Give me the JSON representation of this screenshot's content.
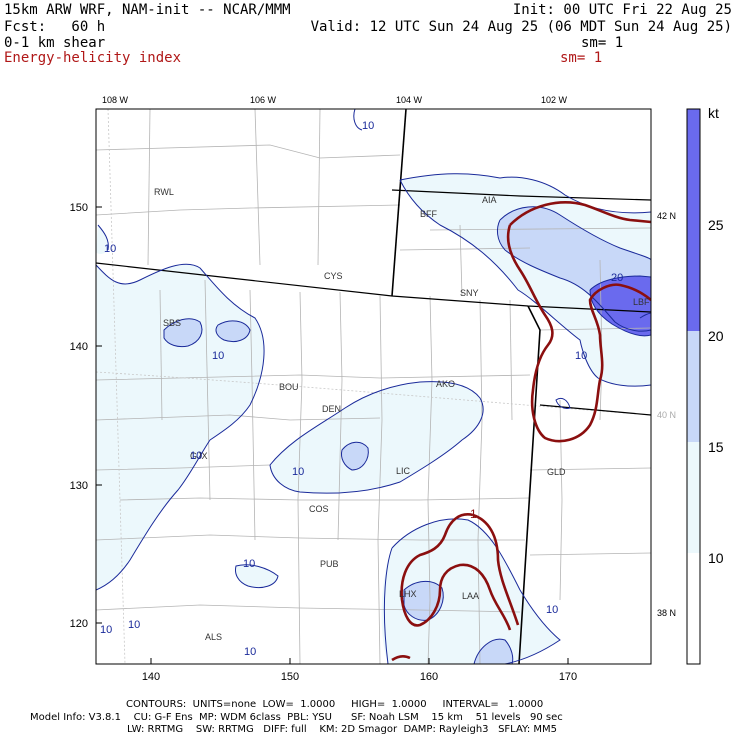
{
  "header": {
    "line1_left": "15km ARW WRF, NAM-init -- NCAR/MMM",
    "line1_right": "Init: 00 UTC Fri 22 Aug 25",
    "line2_left": "Fcst:   60 h",
    "line2_right": "Valid: 12 UTC Sun 24 Aug 25 (06 MDT Sun 24 Aug 25)",
    "line3_left": "0-1 km shear",
    "line3_right": "sm= 1",
    "line4_left": "Energy-helicity index",
    "line4_right": "sm= 1"
  },
  "map": {
    "lon_top_labels": [
      "108 W",
      "106 W",
      "104 W",
      "102 W"
    ],
    "lat_right_labels": [
      "42 N",
      "40 N",
      "38 N"
    ],
    "y_axis_labels": [
      "150",
      "140",
      "130",
      "120"
    ],
    "x_axis_labels": [
      "140",
      "150",
      "160",
      "170"
    ],
    "stations": [
      "RWL",
      "BFF",
      "AIA",
      "CYS",
      "SNY",
      "LBF",
      "SBS",
      "BOU",
      "DEN",
      "AKO",
      "GJX",
      "LIC",
      "GLD",
      "COS",
      "PUB",
      "LHX",
      "LAA",
      "ALS"
    ],
    "shear_contour_labels": [
      "10",
      "10",
      "10",
      "10",
      "10",
      "10",
      "10",
      "10",
      "10",
      "10",
      "10",
      "20"
    ],
    "ehi_contour_labels": [
      "1"
    ]
  },
  "colorbar": {
    "unit": "kt",
    "ticks": [
      "25",
      "20",
      "15",
      "10"
    ],
    "fills": [
      "#6a6aee",
      "#c8d8f8",
      "#ecf8fc",
      "#ffffff"
    ]
  },
  "colors": {
    "shear_contour": "#1a2a9a",
    "ehi_contour": "#8b0f0f",
    "border": "#000000",
    "county": "#b4b4b4"
  },
  "footer": {
    "contours": "CONTOURS:  UNITS=none  LOW=  1.0000     HIGH=  1.0000     INTERVAL=   1.0000",
    "model_line1": "Model Info: V3.8.1    CU: G-F Ens  MP: WDM 6class  PBL: YSU      SF: Noah LSM    15 km    51 levels   90 sec",
    "model_line2": "LW: RRTMG    SW: RRTMG   DIFF: full    KM: 2D Smagor  DAMP: Rayleigh3   SFLAY: MM5"
  }
}
